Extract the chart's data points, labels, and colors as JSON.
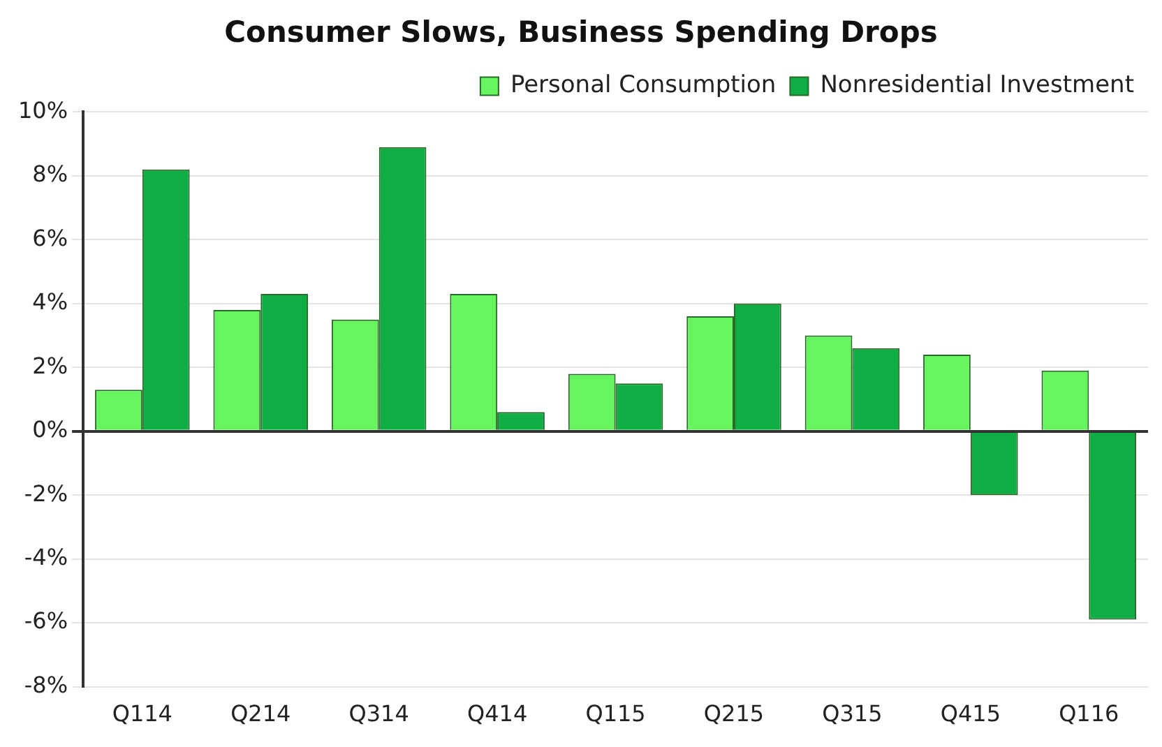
{
  "chart_data": {
    "type": "bar",
    "title": "Consumer Slows, Business Spending Drops",
    "categories": [
      "Q114",
      "Q214",
      "Q314",
      "Q414",
      "Q115",
      "Q215",
      "Q315",
      "Q415",
      "Q116"
    ],
    "series": [
      {
        "name": "Personal Consumption",
        "color": "#66f55e",
        "values": [
          1.3,
          3.8,
          3.5,
          4.3,
          1.8,
          3.6,
          3.0,
          2.4,
          1.9
        ]
      },
      {
        "name": "Nonresidential Investment",
        "color": "#0fae45",
        "values": [
          8.2,
          4.3,
          8.9,
          0.6,
          1.5,
          4.0,
          2.6,
          -2.0,
          -5.9
        ]
      }
    ],
    "ylim": [
      -8,
      10
    ],
    "yticks": [
      {
        "value": -8,
        "label": "-8%"
      },
      {
        "value": -6,
        "label": "-6%"
      },
      {
        "value": -4,
        "label": "-4%"
      },
      {
        "value": -2,
        "label": "-2%"
      },
      {
        "value": 0,
        "label": "0%"
      },
      {
        "value": 2,
        "label": "2%"
      },
      {
        "value": 4,
        "label": "4%"
      },
      {
        "value": 6,
        "label": "6%"
      },
      {
        "value": 8,
        "label": "8%"
      },
      {
        "value": 10,
        "label": "10%"
      }
    ],
    "grid": "y",
    "legend": "top right"
  }
}
